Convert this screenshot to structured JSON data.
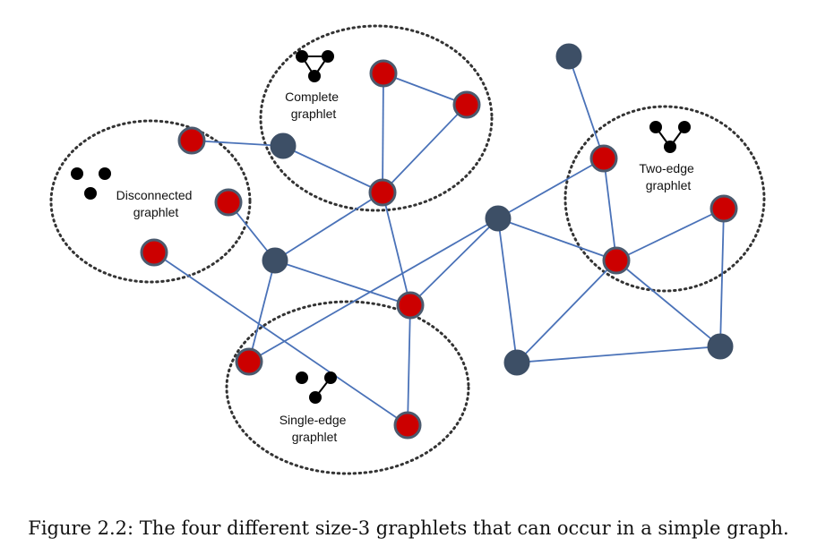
{
  "colors": {
    "edge": "#4a72b8",
    "selected_node": "#cc0000",
    "other_node": "#3d4f66",
    "node_stroke": "#4b5a6e",
    "glyph": "#000000",
    "region": "#333333"
  },
  "regions": [
    {
      "id": "disconnected",
      "label_lines": [
        "Disconnected",
        "graphlet"
      ],
      "glyph": "disconnected"
    },
    {
      "id": "complete",
      "label_lines": [
        "Complete",
        "graphlet"
      ],
      "glyph": "triangle"
    },
    {
      "id": "two-edge",
      "label_lines": [
        "Two-edge",
        "graphlet"
      ],
      "glyph": "two-edge"
    },
    {
      "id": "single-edge",
      "label_lines": [
        "Single-edge",
        "graphlet"
      ],
      "glyph": "single-edge"
    }
  ],
  "nodes": [
    {
      "id": "n1",
      "kind": "selected"
    },
    {
      "id": "n2",
      "kind": "selected"
    },
    {
      "id": "n3",
      "kind": "selected"
    },
    {
      "id": "n4",
      "kind": "selected"
    },
    {
      "id": "n5",
      "kind": "selected"
    },
    {
      "id": "n6",
      "kind": "selected"
    },
    {
      "id": "n7",
      "kind": "other"
    },
    {
      "id": "n8",
      "kind": "other"
    },
    {
      "id": "n9",
      "kind": "selected"
    },
    {
      "id": "n10",
      "kind": "selected"
    },
    {
      "id": "n11",
      "kind": "selected"
    },
    {
      "id": "n12",
      "kind": "other"
    },
    {
      "id": "n13",
      "kind": "selected"
    },
    {
      "id": "n14",
      "kind": "selected"
    },
    {
      "id": "n15",
      "kind": "other"
    },
    {
      "id": "n16",
      "kind": "selected"
    },
    {
      "id": "n17",
      "kind": "other"
    },
    {
      "id": "n18",
      "kind": "other"
    }
  ],
  "edges": [
    [
      "n1",
      "n7"
    ],
    [
      "n7",
      "n6"
    ],
    [
      "n4",
      "n5"
    ],
    [
      "n4",
      "n6"
    ],
    [
      "n5",
      "n6"
    ],
    [
      "n6",
      "n8"
    ],
    [
      "n6",
      "n9"
    ],
    [
      "n2",
      "n8"
    ],
    [
      "n3",
      "n11"
    ],
    [
      "n8",
      "n9"
    ],
    [
      "n8",
      "n10"
    ],
    [
      "n9",
      "n11"
    ],
    [
      "n9",
      "n12"
    ],
    [
      "n10",
      "n12"
    ],
    [
      "n12",
      "n13"
    ],
    [
      "n12",
      "n17"
    ],
    [
      "n12",
      "n14"
    ],
    [
      "n15",
      "n13"
    ],
    [
      "n13",
      "n14"
    ],
    [
      "n14",
      "n16"
    ],
    [
      "n14",
      "n17"
    ],
    [
      "n14",
      "n18"
    ],
    [
      "n16",
      "n18"
    ],
    [
      "n17",
      "n18"
    ]
  ],
  "caption": "Figure 2.2: The four different size-3 graphlets that can occur in a simple graph."
}
